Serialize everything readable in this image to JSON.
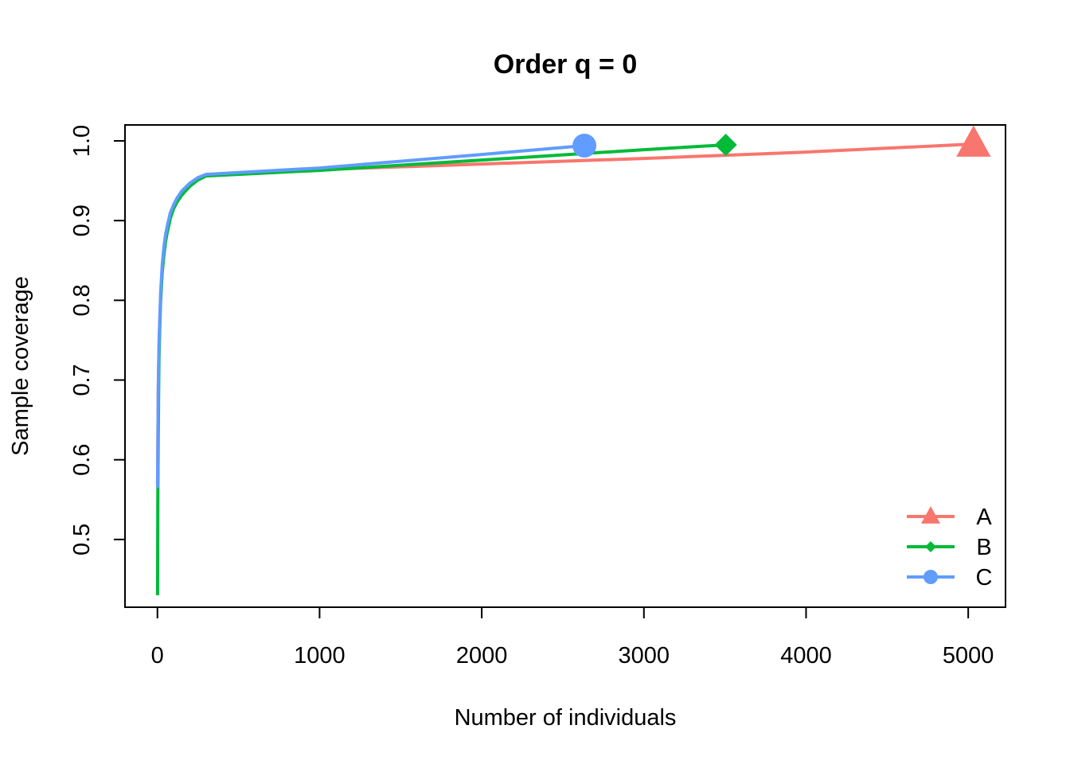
{
  "chart_data": {
    "type": "line",
    "title": "Order q = 0",
    "xlabel": "Number of individuals",
    "ylabel": "Sample coverage",
    "xlim": [
      -200,
      5230
    ],
    "ylim": [
      0.415,
      1.02
    ],
    "xticks": [
      0,
      1000,
      2000,
      3000,
      4000,
      5000
    ],
    "xtick_labels": [
      "0",
      "1000",
      "2000",
      "3000",
      "4000",
      "5000"
    ],
    "yticks": [
      0.5,
      0.6,
      0.7,
      0.8,
      0.9,
      1.0
    ],
    "ytick_labels": [
      "0.5",
      "0.6",
      "0.7",
      "0.8",
      "0.9",
      "1.0"
    ],
    "grid": false,
    "legend_position": "bottom-right",
    "series": [
      {
        "name": "A",
        "color": "#F8766D",
        "marker": "triangle",
        "x": [
          1,
          5,
          10,
          20,
          30,
          40,
          50,
          60,
          80,
          100,
          120,
          150,
          200,
          250,
          300,
          1000,
          2000,
          3000,
          4000,
          5033
        ],
        "y": [
          0.57,
          0.69,
          0.745,
          0.805,
          0.84,
          0.862,
          0.878,
          0.89,
          0.907,
          0.918,
          0.926,
          0.935,
          0.945,
          0.952,
          0.957,
          0.964,
          0.971,
          0.978,
          0.986,
          0.996
        ]
      },
      {
        "name": "B",
        "color": "#00BA38",
        "marker": "diamond",
        "x": [
          1,
          3,
          5,
          8,
          10,
          15,
          20,
          30,
          40,
          50,
          60,
          80,
          100,
          120,
          150,
          200,
          250,
          300,
          1000,
          2000,
          3000,
          3505
        ],
        "y": [
          0.43,
          0.56,
          0.63,
          0.7,
          0.73,
          0.77,
          0.8,
          0.835,
          0.857,
          0.873,
          0.885,
          0.903,
          0.915,
          0.923,
          0.932,
          0.943,
          0.951,
          0.956,
          0.963,
          0.976,
          0.989,
          0.995
        ]
      },
      {
        "name": "C",
        "color": "#619CFF",
        "marker": "circle",
        "x": [
          1,
          5,
          10,
          20,
          30,
          40,
          50,
          60,
          80,
          100,
          120,
          150,
          200,
          250,
          300,
          1000,
          2000,
          2633
        ],
        "y": [
          0.565,
          0.69,
          0.75,
          0.81,
          0.845,
          0.867,
          0.882,
          0.893,
          0.91,
          0.92,
          0.928,
          0.937,
          0.947,
          0.954,
          0.958,
          0.966,
          0.983,
          0.994
        ]
      }
    ]
  }
}
